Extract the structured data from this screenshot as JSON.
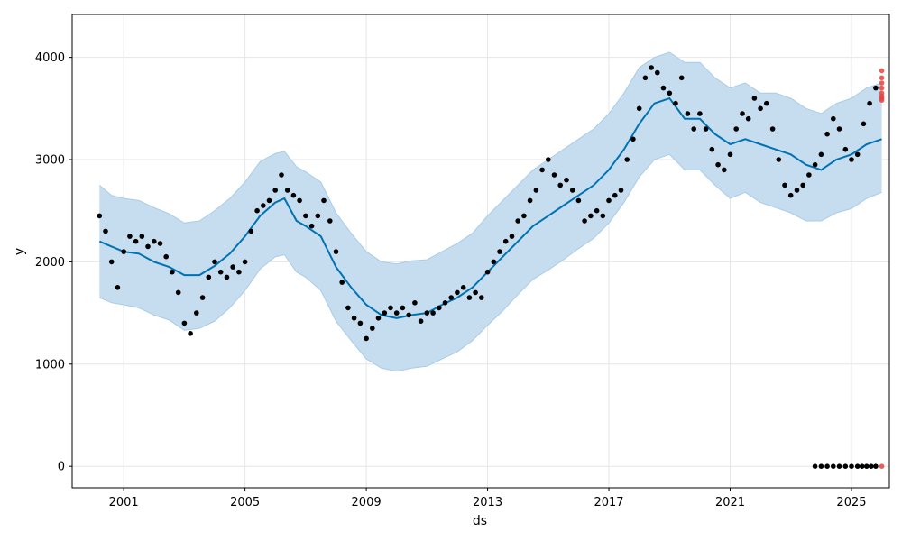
{
  "chart_data": {
    "type": "line",
    "title": "",
    "xlabel": "ds",
    "ylabel": "y",
    "xlim": [
      1999.3,
      2026.25
    ],
    "ylim": [
      -210,
      4420
    ],
    "xticks": [
      {
        "value": 2001.0,
        "label": "2001"
      },
      {
        "value": 2005.0,
        "label": "2005"
      },
      {
        "value": 2009.0,
        "label": "2009"
      },
      {
        "value": 2013.0,
        "label": "2013"
      },
      {
        "value": 2017.0,
        "label": "2017"
      },
      {
        "value": 2021.0,
        "label": "2021"
      },
      {
        "value": 2025.0,
        "label": "2025"
      }
    ],
    "yticks": [
      {
        "value": 0,
        "label": "0"
      },
      {
        "value": 1000,
        "label": "1000"
      },
      {
        "value": 2000,
        "label": "2000"
      },
      {
        "value": 3000,
        "label": "3000"
      },
      {
        "value": 4000,
        "label": "4000"
      }
    ],
    "grid": true,
    "colors": {
      "forecast": "#0072B2",
      "interval_fill": "#C5DDEE",
      "interval_edge": "#A9CCE6",
      "observed": "#000000",
      "recent": "#E8423C",
      "grid": "#E6E6E6",
      "axis": "#000000"
    },
    "series": [
      {
        "role": "forecast",
        "x": [
          2000.2,
          2000.6,
          2001.0,
          2001.5,
          2002.0,
          2002.5,
          2003.0,
          2003.5,
          2004.0,
          2004.5,
          2005.0,
          2005.5,
          2006.0,
          2006.3,
          2006.7,
          2007.0,
          2007.5,
          2008.0,
          2008.5,
          2009.0,
          2009.5,
          2010.0,
          2010.5,
          2011.0,
          2011.5,
          2012.0,
          2012.5,
          2013.0,
          2013.5,
          2014.0,
          2014.5,
          2015.0,
          2015.5,
          2016.0,
          2016.5,
          2017.0,
          2017.5,
          2018.0,
          2018.5,
          2019.0,
          2019.5,
          2020.0,
          2020.5,
          2021.0,
          2021.5,
          2022.0,
          2022.5,
          2023.0,
          2023.5,
          2024.0,
          2024.5,
          2025.0,
          2025.5,
          2026.0
        ],
        "y": [
          2200,
          2150,
          2100,
          2080,
          2000,
          1950,
          1870,
          1870,
          1960,
          2080,
          2250,
          2450,
          2580,
          2620,
          2400,
          2350,
          2250,
          1950,
          1750,
          1580,
          1480,
          1450,
          1480,
          1500,
          1580,
          1650,
          1750,
          1900,
          2050,
          2200,
          2350,
          2450,
          2550,
          2650,
          2750,
          2900,
          3100,
          3350,
          3550,
          3600,
          3400,
          3400,
          3250,
          3150,
          3200,
          3150,
          3100,
          3050,
          2950,
          2900,
          3000,
          3050,
          3150,
          3200
        ]
      },
      {
        "role": "interval_upper",
        "x": [
          2000.2,
          2000.6,
          2001.0,
          2001.5,
          2002.0,
          2002.5,
          2003.0,
          2003.5,
          2004.0,
          2004.5,
          2005.0,
          2005.5,
          2006.0,
          2006.3,
          2006.7,
          2007.0,
          2007.5,
          2008.0,
          2008.5,
          2009.0,
          2009.5,
          2010.0,
          2010.5,
          2011.0,
          2011.5,
          2012.0,
          2012.5,
          2013.0,
          2013.5,
          2014.0,
          2014.5,
          2015.0,
          2015.5,
          2016.0,
          2016.5,
          2017.0,
          2017.5,
          2018.0,
          2018.5,
          2019.0,
          2019.5,
          2020.0,
          2020.5,
          2021.0,
          2021.5,
          2022.0,
          2022.5,
          2023.0,
          2023.5,
          2024.0,
          2024.5,
          2025.0,
          2025.5,
          2026.0
        ],
        "y": [
          2750,
          2650,
          2620,
          2600,
          2530,
          2470,
          2380,
          2400,
          2500,
          2620,
          2780,
          2980,
          3060,
          3080,
          2930,
          2880,
          2780,
          2480,
          2280,
          2100,
          2000,
          1980,
          2010,
          2020,
          2100,
          2180,
          2280,
          2450,
          2600,
          2750,
          2900,
          3000,
          3100,
          3200,
          3300,
          3450,
          3650,
          3900,
          4000,
          4050,
          3950,
          3950,
          3800,
          3700,
          3750,
          3650,
          3650,
          3600,
          3500,
          3450,
          3550,
          3600,
          3700,
          3750
        ]
      },
      {
        "role": "interval_lower",
        "x": [
          2000.2,
          2000.6,
          2001.0,
          2001.5,
          2002.0,
          2002.5,
          2003.0,
          2003.5,
          2004.0,
          2004.5,
          2005.0,
          2005.5,
          2006.0,
          2006.3,
          2006.7,
          2007.0,
          2007.5,
          2008.0,
          2008.5,
          2009.0,
          2009.5,
          2010.0,
          2010.5,
          2011.0,
          2011.5,
          2012.0,
          2012.5,
          2013.0,
          2013.5,
          2014.0,
          2014.5,
          2015.0,
          2015.5,
          2016.0,
          2016.5,
          2017.0,
          2017.5,
          2018.0,
          2018.5,
          2019.0,
          2019.5,
          2020.0,
          2020.5,
          2021.0,
          2021.5,
          2022.0,
          2022.5,
          2023.0,
          2023.5,
          2024.0,
          2024.5,
          2025.0,
          2025.5,
          2026.0
        ],
        "y": [
          1650,
          1600,
          1580,
          1550,
          1480,
          1430,
          1330,
          1350,
          1420,
          1550,
          1720,
          1930,
          2050,
          2070,
          1900,
          1850,
          1720,
          1420,
          1230,
          1050,
          960,
          930,
          960,
          980,
          1050,
          1120,
          1230,
          1380,
          1520,
          1680,
          1830,
          1920,
          2020,
          2130,
          2230,
          2380,
          2580,
          2830,
          3000,
          3050,
          2900,
          2900,
          2750,
          2620,
          2680,
          2580,
          2530,
          2480,
          2400,
          2400,
          2480,
          2520,
          2620,
          2680
        ]
      },
      {
        "role": "observed",
        "x": [
          2000.2,
          2000.4,
          2000.6,
          2000.8,
          2001.0,
          2001.2,
          2001.4,
          2001.6,
          2001.8,
          2002.0,
          2002.2,
          2002.4,
          2002.6,
          2002.8,
          2003.0,
          2003.2,
          2003.4,
          2003.6,
          2003.8,
          2004.0,
          2004.2,
          2004.4,
          2004.6,
          2004.8,
          2005.0,
          2005.2,
          2005.4,
          2005.6,
          2005.8,
          2006.0,
          2006.2,
          2006.4,
          2006.6,
          2006.8,
          2007.0,
          2007.2,
          2007.4,
          2007.6,
          2007.8,
          2008.0,
          2008.2,
          2008.4,
          2008.6,
          2008.8,
          2009.0,
          2009.2,
          2009.4,
          2009.6,
          2009.8,
          2010.0,
          2010.2,
          2010.4,
          2010.6,
          2010.8,
          2011.0,
          2011.2,
          2011.4,
          2011.6,
          2011.8,
          2012.0,
          2012.2,
          2012.4,
          2012.6,
          2012.8,
          2013.0,
          2013.2,
          2013.4,
          2013.6,
          2013.8,
          2014.0,
          2014.2,
          2014.4,
          2014.6,
          2014.8,
          2015.0,
          2015.2,
          2015.4,
          2015.6,
          2015.8,
          2016.0,
          2016.2,
          2016.4,
          2016.6,
          2016.8,
          2017.0,
          2017.2,
          2017.4,
          2017.6,
          2017.8,
          2018.0,
          2018.2,
          2018.4,
          2018.6,
          2018.8,
          2019.0,
          2019.2,
          2019.4,
          2019.6,
          2019.8,
          2020.0,
          2020.2,
          2020.4,
          2020.6,
          2020.8,
          2021.0,
          2021.2,
          2021.4,
          2021.6,
          2021.8,
          2022.0,
          2022.2,
          2022.4,
          2022.6,
          2022.8,
          2023.0,
          2023.2,
          2023.4,
          2023.6,
          2023.8,
          2024.0,
          2024.2,
          2024.4,
          2024.6,
          2024.8,
          2025.0,
          2025.2,
          2025.4,
          2025.6,
          2025.8
        ],
        "y": [
          2450,
          2300,
          2000,
          1750,
          2100,
          2250,
          2200,
          2250,
          2150,
          2200,
          2180,
          2050,
          1900,
          1700,
          1400,
          1300,
          1500,
          1650,
          1850,
          2000,
          1900,
          1850,
          1950,
          1900,
          2000,
          2300,
          2500,
          2550,
          2600,
          2700,
          2850,
          2700,
          2650,
          2600,
          2450,
          2350,
          2450,
          2600,
          2400,
          2100,
          1800,
          1550,
          1450,
          1400,
          1250,
          1350,
          1450,
          1500,
          1550,
          1500,
          1550,
          1480,
          1600,
          1420,
          1500,
          1500,
          1550,
          1600,
          1650,
          1700,
          1750,
          1650,
          1700,
          1650,
          1900,
          2000,
          2100,
          2200,
          2250,
          2400,
          2450,
          2600,
          2700,
          2900,
          3000,
          2850,
          2750,
          2800,
          2700,
          2600,
          2400,
          2450,
          2500,
          2450,
          2600,
          2650,
          2700,
          3000,
          3200,
          3500,
          3800,
          3900,
          3850,
          3700,
          3650,
          3550,
          3800,
          3450,
          3300,
          3450,
          3300,
          3100,
          2950,
          2900,
          3050,
          3300,
          3450,
          3400,
          3600,
          3500,
          3550,
          3300,
          3000,
          2750,
          2650,
          2700,
          2750,
          2850,
          2950,
          3050,
          3250,
          3400,
          3300,
          3100,
          3000,
          3050,
          3350,
          3550,
          3700
        ]
      },
      {
        "role": "observed_zero",
        "x": [
          2023.8,
          2024.0,
          2024.2,
          2024.4,
          2024.6,
          2024.8,
          2025.0,
          2025.2,
          2025.35,
          2025.5,
          2025.65,
          2025.8
        ],
        "y": [
          0,
          0,
          0,
          0,
          0,
          0,
          0,
          0,
          0,
          0,
          0,
          0
        ]
      },
      {
        "role": "recent",
        "x": [
          2026.0,
          2026.0,
          2026.0,
          2026.0,
          2026.0,
          2026.0,
          2026.0,
          2026.0,
          2026.0
        ],
        "y": [
          3600,
          3650,
          3700,
          3750,
          3800,
          3870,
          3580,
          3620,
          0
        ]
      }
    ]
  }
}
